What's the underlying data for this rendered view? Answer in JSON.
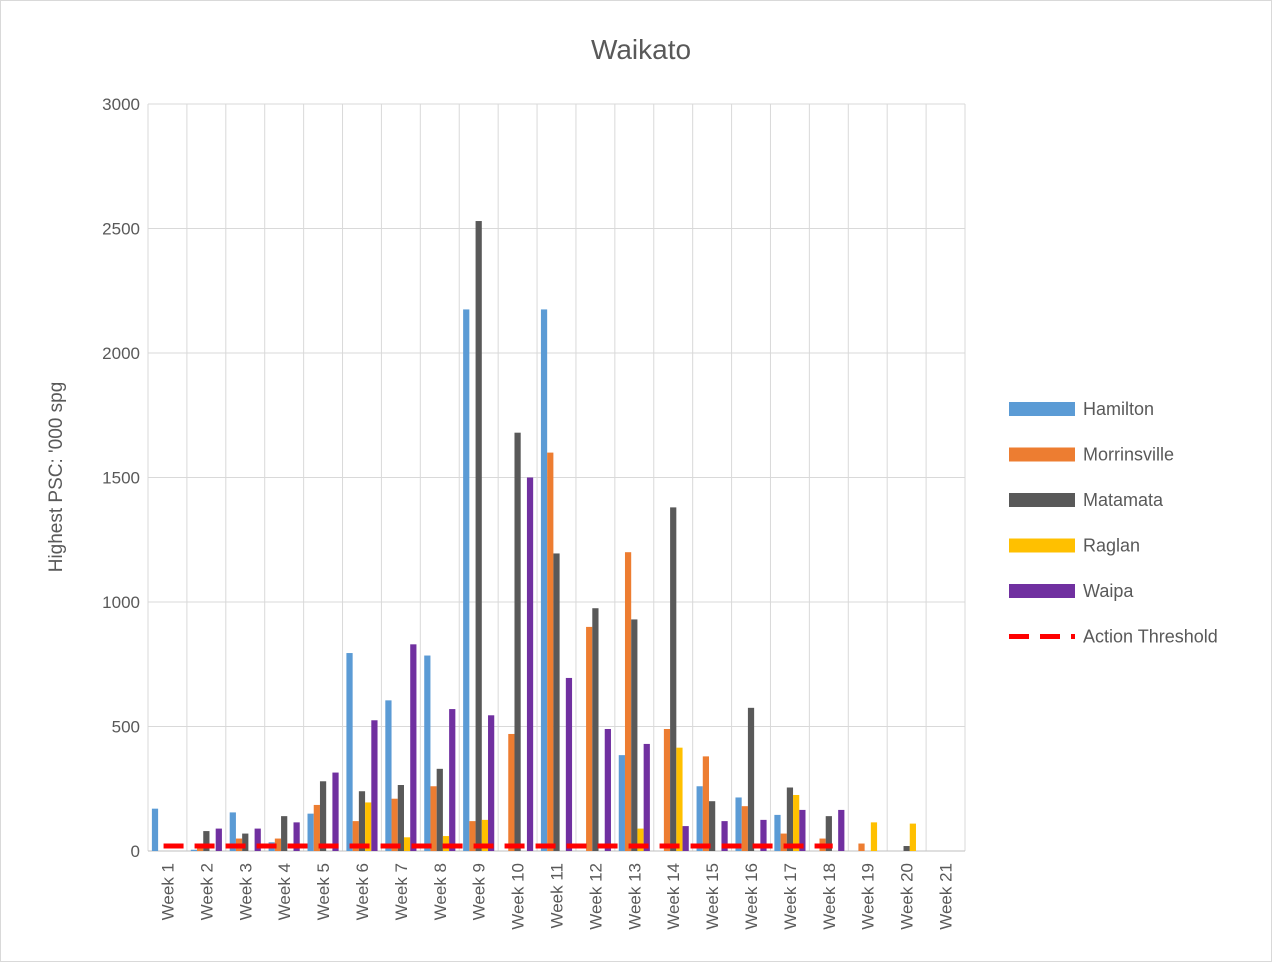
{
  "chart_data": {
    "type": "bar",
    "title": "Waikato",
    "ylabel": "Highest PSC: '000 spg",
    "xlabel": "",
    "ylim": [
      0,
      3000
    ],
    "yticks": [
      0,
      500,
      1000,
      1500,
      2000,
      2500,
      3000
    ],
    "grid": true,
    "legend_position": "right",
    "categories": [
      "Week 1",
      "Week 2",
      "Week 3",
      "Week 4",
      "Week 5",
      "Week 6",
      "Week 7",
      "Week 8",
      "Week 9",
      "Week 10",
      "Week 11",
      "Week 12",
      "Week 13",
      "Week 14",
      "Week 15",
      "Week 16",
      "Week 17",
      "Week 18",
      "Week 19",
      "Week 20",
      "Week 21"
    ],
    "series": [
      {
        "name": "Hamilton",
        "color": "#5b9bd5",
        "values": [
          170,
          5,
          155,
          35,
          150,
          795,
          605,
          785,
          2175,
          null,
          2175,
          null,
          385,
          null,
          260,
          215,
          145,
          null,
          null,
          null,
          null
        ]
      },
      {
        "name": "Morrinsville",
        "color": "#ed7d31",
        "values": [
          null,
          30,
          50,
          50,
          185,
          120,
          210,
          260,
          120,
          470,
          1600,
          900,
          1200,
          490,
          380,
          180,
          70,
          50,
          30,
          null,
          null
        ]
      },
      {
        "name": "Matamata",
        "color": "#595959",
        "values": [
          null,
          80,
          70,
          140,
          280,
          240,
          265,
          330,
          2530,
          1680,
          1195,
          975,
          930,
          1380,
          200,
          575,
          255,
          140,
          null,
          20,
          null
        ]
      },
      {
        "name": "Raglan",
        "color": "#ffc000",
        "values": [
          null,
          null,
          null,
          null,
          null,
          195,
          55,
          60,
          125,
          null,
          null,
          null,
          90,
          415,
          null,
          null,
          225,
          null,
          115,
          110,
          null
        ]
      },
      {
        "name": "Waipa",
        "color": "#7030a0",
        "values": [
          null,
          90,
          90,
          115,
          315,
          525,
          830,
          570,
          545,
          1500,
          695,
          490,
          430,
          100,
          120,
          125,
          165,
          165,
          null,
          null,
          null
        ]
      }
    ],
    "threshold": {
      "name": "Action Threshold",
      "color": "#ff0000",
      "value": 20,
      "start_category": "Week 1",
      "end_category": "Week 18"
    }
  }
}
